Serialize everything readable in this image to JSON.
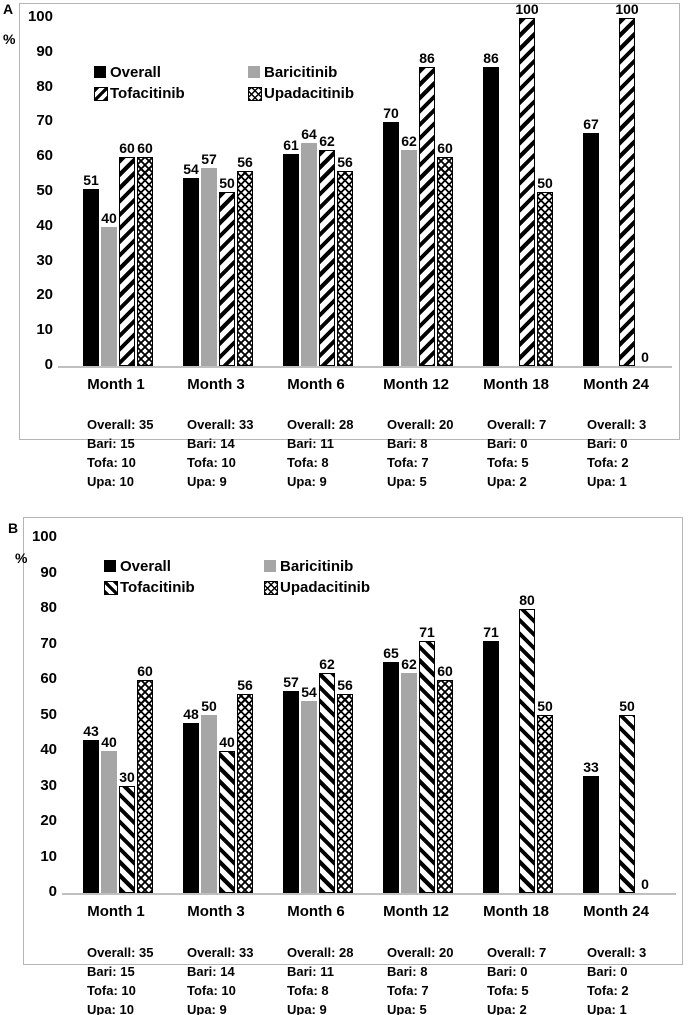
{
  "figure": {
    "panel_letters": [
      "A",
      "B"
    ],
    "y_axis_unit": "%"
  },
  "colors": {
    "bar_black": "#000000",
    "bar_gray": "#a6a6a6",
    "axis_line": "#bfbfbf",
    "frame_border": "#b5b5b5",
    "text": "#000000",
    "background": "#ffffff"
  },
  "chart_data": [
    {
      "panel": "A",
      "type": "bar",
      "title": "",
      "xlabel": "",
      "ylabel": "%",
      "ylim": [
        0,
        100
      ],
      "yticks": [
        0,
        10,
        20,
        30,
        40,
        50,
        60,
        70,
        80,
        90,
        100
      ],
      "grid": false,
      "legend_position": "top-left",
      "categories": [
        "Month 1",
        "Month 3",
        "Month 6",
        "Month 12",
        "Month 18",
        "Month 24"
      ],
      "series": [
        {
          "name": "Overall",
          "pattern": "solid-black",
          "values": [
            51,
            54,
            61,
            70,
            86,
            67
          ]
        },
        {
          "name": "Baricitinib",
          "pattern": "solid-gray",
          "values": [
            40,
            57,
            64,
            62,
            null,
            null
          ]
        },
        {
          "name": "Tofacitinib",
          "pattern": "diagonal-stripes-up",
          "values": [
            60,
            50,
            62,
            86,
            100,
            100
          ]
        },
        {
          "name": "Upadacitinib",
          "pattern": "crosshatch",
          "values": [
            60,
            56,
            56,
            60,
            50,
            0
          ]
        }
      ],
      "sample_sizes": [
        [
          "Overall: 35",
          "Bari: 15",
          "Tofa: 10",
          "Upa: 10"
        ],
        [
          "Overall: 33",
          "Bari: 14",
          "Tofa: 10",
          "Upa: 9"
        ],
        [
          "Overall: 28",
          "Bari: 11",
          "Tofa: 8",
          "Upa: 9"
        ],
        [
          "Overall: 20",
          "Bari: 8",
          "Tofa: 7",
          "Upa: 5"
        ],
        [
          "Overall: 7",
          "Bari: 0",
          "Tofa: 5",
          "Upa: 2"
        ],
        [
          "Overall: 3",
          "Bari: 0",
          "Tofa: 2",
          "Upa: 1"
        ]
      ]
    },
    {
      "panel": "B",
      "type": "bar",
      "title": "",
      "xlabel": "",
      "ylabel": "%",
      "ylim": [
        0,
        100
      ],
      "yticks": [
        0,
        10,
        20,
        30,
        40,
        50,
        60,
        70,
        80,
        90,
        100
      ],
      "grid": false,
      "legend_position": "top-left",
      "categories": [
        "Month 1",
        "Month 3",
        "Month 6",
        "Month 12",
        "Month 18",
        "Month 24"
      ],
      "series": [
        {
          "name": "Overall",
          "pattern": "solid-black",
          "values": [
            43,
            48,
            57,
            65,
            71,
            33
          ]
        },
        {
          "name": "Baricitinib",
          "pattern": "solid-gray",
          "values": [
            40,
            50,
            54,
            62,
            null,
            null
          ]
        },
        {
          "name": "Tofacitinib",
          "pattern": "diagonal-stripes-down",
          "values": [
            30,
            40,
            62,
            71,
            80,
            50
          ]
        },
        {
          "name": "Upadacitinib",
          "pattern": "crosshatch",
          "values": [
            60,
            56,
            56,
            60,
            50,
            0
          ]
        }
      ],
      "sample_sizes": [
        [
          "Overall: 35",
          "Bari: 15",
          "Tofa: 10",
          "Upa: 10"
        ],
        [
          "Overall: 33",
          "Bari: 14",
          "Tofa: 10",
          "Upa: 9"
        ],
        [
          "Overall: 28",
          "Bari: 11",
          "Tofa: 8",
          "Upa: 9"
        ],
        [
          "Overall: 20",
          "Bari: 8",
          "Tofa: 7",
          "Upa: 5"
        ],
        [
          "Overall: 7",
          "Bari: 0",
          "Tofa: 5",
          "Upa: 2"
        ],
        [
          "Overall: 3",
          "Bari: 0",
          "Tofa: 2",
          "Upa: 1"
        ]
      ]
    }
  ]
}
